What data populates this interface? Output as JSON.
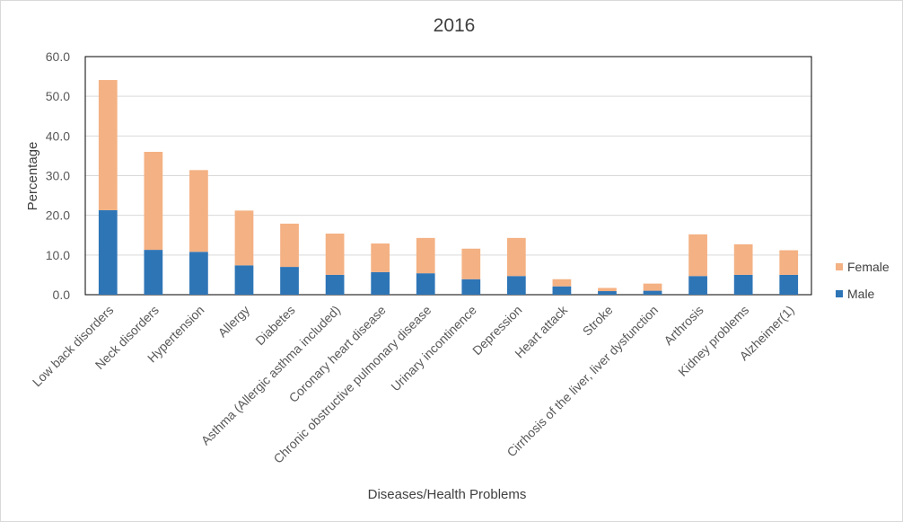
{
  "chart_data": {
    "type": "bar",
    "stacked": true,
    "title": "2016",
    "xlabel": "Diseases/Health Problems",
    "ylabel": "Percentage",
    "ylim": [
      0,
      60
    ],
    "yticks": [
      0,
      10,
      20,
      30,
      40,
      50,
      60
    ],
    "ytick_labels": [
      "0.0",
      "10.0",
      "20.0",
      "30.0",
      "40.0",
      "50.0",
      "60.0"
    ],
    "grid": true,
    "legend_position": "right",
    "categories": [
      "Low back disorders",
      "Neck disorders",
      "Hypertension",
      "Allergy",
      "Diabetes",
      "Asthma (Allergic asthma included)",
      "Coronary heart disease",
      "Chronic obstructive pulmonary disease",
      "Urinary incontinence",
      "Depression",
      "Heart attack",
      "Stroke",
      "Cirrhosis of the liver, liver dysfunction",
      "Arthrosis",
      "Kidney problems",
      "Alzheimer(1)"
    ],
    "series": [
      {
        "name": "Male",
        "color": "#2e75b6",
        "values": [
          21.3,
          11.3,
          10.8,
          7.4,
          7.0,
          5.0,
          5.7,
          5.4,
          3.9,
          4.7,
          2.1,
          0.9,
          1.0,
          4.7,
          5.0,
          5.0
        ]
      },
      {
        "name": "Female",
        "color": "#f4b183",
        "values": [
          32.8,
          24.7,
          20.6,
          13.8,
          10.9,
          10.4,
          7.2,
          8.9,
          7.7,
          9.6,
          1.8,
          0.8,
          1.8,
          10.5,
          7.7,
          6.2
        ]
      }
    ]
  }
}
